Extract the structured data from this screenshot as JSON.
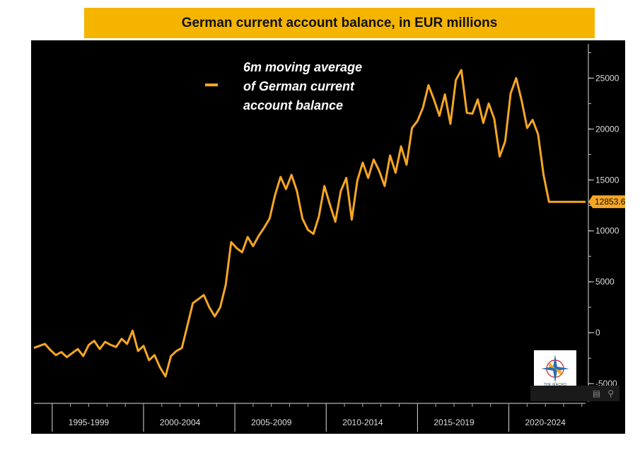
{
  "title": "German current account balance, in EUR millions",
  "legend": {
    "label": "6m moving average\nof German current\naccount balance",
    "color": "#f5a623"
  },
  "last_value_label": "12853.6",
  "logo": {
    "text": "THE MACRO COMPASS"
  },
  "icons": {
    "toolbar_left": "table-icon",
    "toolbar_right": "search-icon"
  },
  "chart_data": {
    "type": "line",
    "title": "German current account balance, in EUR millions",
    "xlabel": "",
    "ylabel": "",
    "xlim": [
      1994.0,
      2024.2
    ],
    "ylim": [
      -6800,
      28500
    ],
    "y_ticks": [
      -5000,
      0,
      5000,
      10000,
      15000,
      20000,
      25000
    ],
    "y_tick_labels": [
      "-5000",
      "0",
      "5000",
      "10000",
      "15000",
      "20000",
      "25000"
    ],
    "x_tick_labels": [
      "1995-1999",
      "2000-2004",
      "2005-2009",
      "2010-2014",
      "2015-2019",
      "2020-2024"
    ],
    "x_tick_centers": [
      1997.0,
      2002.0,
      2007.0,
      2012.0,
      2017.0,
      2022.0
    ],
    "x_separators": [
      1995.0,
      2000.0,
      2005.0,
      2010.0,
      2015.0,
      2020.0
    ],
    "series": [
      {
        "name": "6m moving average of German current account balance",
        "color": "#f5a623",
        "x": [
          1994.0,
          1994.3,
          1994.6,
          1994.9,
          1995.2,
          1995.5,
          1995.8,
          1996.1,
          1996.4,
          1996.7,
          1997.0,
          1997.3,
          1997.6,
          1997.9,
          1998.2,
          1998.5,
          1998.8,
          1999.1,
          1999.4,
          1999.7,
          2000.0,
          2000.3,
          2000.6,
          2000.9,
          2001.2,
          2001.5,
          2001.8,
          2002.1,
          2002.4,
          2002.7,
          2003.0,
          2003.3,
          2003.6,
          2003.9,
          2004.2,
          2004.5,
          2004.8,
          2005.1,
          2005.4,
          2005.7,
          2006.0,
          2006.3,
          2006.6,
          2006.9,
          2007.2,
          2007.5,
          2007.8,
          2008.1,
          2008.4,
          2008.7,
          2009.0,
          2009.3,
          2009.6,
          2009.9,
          2010.2,
          2010.5,
          2010.8,
          2011.1,
          2011.4,
          2011.7,
          2012.0,
          2012.3,
          2012.6,
          2012.9,
          2013.2,
          2013.5,
          2013.8,
          2014.1,
          2014.4,
          2014.7,
          2015.0,
          2015.3,
          2015.6,
          2015.9,
          2016.2,
          2016.5,
          2016.8,
          2017.1,
          2017.4,
          2017.7,
          2018.0,
          2018.3,
          2018.6,
          2018.9,
          2019.2,
          2019.5,
          2019.8,
          2020.1,
          2020.4,
          2020.7,
          2021.0,
          2021.3,
          2021.6,
          2021.9,
          2022.2,
          2022.5,
          2022.8,
          2023.1,
          2023.4,
          2023.7,
          2024.0,
          2024.2
        ],
        "values": [
          -1500,
          -1300,
          -1100,
          -1700,
          -2200,
          -1900,
          -2400,
          -2000,
          -1600,
          -2300,
          -1200,
          -800,
          -1600,
          -900,
          -1200,
          -1400,
          -600,
          -1100,
          200,
          -1800,
          -1300,
          -2700,
          -2200,
          -3400,
          -4300,
          -2300,
          -1800,
          -1500,
          700,
          2900,
          3300,
          3700,
          2500,
          1600,
          2500,
          4700,
          8900,
          8300,
          7900,
          9400,
          8500,
          9500,
          10300,
          11200,
          13500,
          15300,
          14100,
          15500,
          13900,
          11200,
          10100,
          9700,
          11400,
          14400,
          12600,
          10900,
          13900,
          15200,
          11100,
          14900,
          16700,
          15200,
          17000,
          15900,
          14400,
          17400,
          15700,
          18300,
          16500,
          20100,
          20800,
          22100,
          24300,
          22900,
          21300,
          23400,
          20500,
          24800,
          25800,
          21600,
          21500,
          22900,
          20600,
          22500,
          21000,
          17300,
          18800,
          23500,
          25000,
          22800,
          20100,
          20900,
          19500,
          15500,
          12853.6,
          12853.6,
          12853.6,
          12853.6,
          12853.6,
          12853.6,
          12853.6,
          12853.6
        ]
      }
    ]
  }
}
